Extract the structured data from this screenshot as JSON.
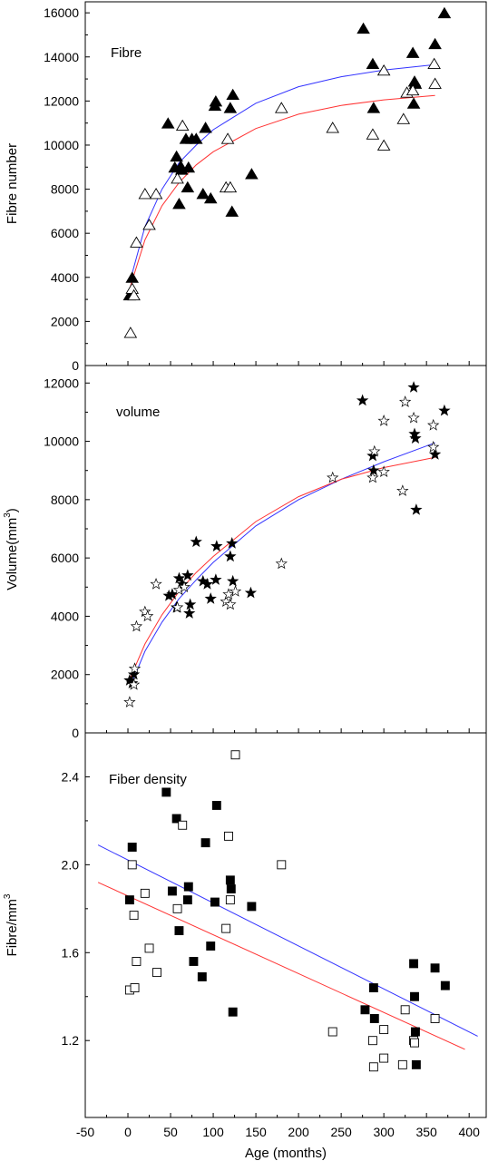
{
  "figure": {
    "xlabel": "Age (months)",
    "xlim": [
      -50,
      420
    ],
    "xticks": [
      -50,
      0,
      50,
      100,
      150,
      200,
      250,
      300,
      350,
      400
    ],
    "colors": {
      "axis": "#000000",
      "blue_fit": "#3333ff",
      "red_fit": "#ff3333"
    }
  },
  "chart_data": [
    {
      "type": "scatter",
      "title": "Fibre",
      "ylabel": "Fibre number",
      "ylabel_sup": "",
      "ylim": [
        0,
        16500
      ],
      "yticks": [
        0,
        2000,
        4000,
        6000,
        8000,
        10000,
        12000,
        14000,
        16000
      ],
      "ytick_labels": [
        "0",
        "2000",
        "4000",
        "6000",
        "8000",
        "10000",
        "12000",
        "14000",
        "16000"
      ],
      "marker": "triangle",
      "series": [
        {
          "marker_fill": "filled",
          "points": [
            [
              2,
              3200
            ],
            [
              5,
              3300
            ],
            [
              5,
              4000
            ],
            [
              47,
              11000
            ],
            [
              55,
              9000
            ],
            [
              57,
              9500
            ],
            [
              60,
              7350
            ],
            [
              62,
              9050
            ],
            [
              63,
              8900
            ],
            [
              68,
              10300
            ],
            [
              70,
              8100
            ],
            [
              71,
              9000
            ],
            [
              75,
              10300
            ],
            [
              80,
              10300
            ],
            [
              88,
              7800
            ],
            [
              91,
              10800
            ],
            [
              97,
              7600
            ],
            [
              102,
              11800
            ],
            [
              103,
              12000
            ],
            [
              120,
              11700
            ],
            [
              122,
              7000
            ],
            [
              123,
              12300
            ],
            [
              145,
              8700
            ],
            [
              276,
              15300
            ],
            [
              287,
              13700
            ],
            [
              288,
              11700
            ],
            [
              334,
              14200
            ],
            [
              335,
              11900
            ],
            [
              336,
              12900
            ],
            [
              337,
              12800
            ],
            [
              360,
              14600
            ],
            [
              371,
              16000
            ]
          ]
        },
        {
          "marker_fill": "open",
          "points": [
            [
              3,
              1500
            ],
            [
              5,
              3500
            ],
            [
              7,
              3200
            ],
            [
              10,
              5600
            ],
            [
              20,
              7800
            ],
            [
              25,
              6400
            ],
            [
              33,
              7800
            ],
            [
              58,
              8500
            ],
            [
              64,
              10900
            ],
            [
              115,
              8100
            ],
            [
              117,
              10300
            ],
            [
              120,
              8100
            ],
            [
              180,
              11700
            ],
            [
              240,
              10800
            ],
            [
              287,
              10500
            ],
            [
              300,
              10000
            ],
            [
              300,
              13400
            ],
            [
              323,
              11200
            ],
            [
              327,
              12400
            ],
            [
              334,
              12500
            ],
            [
              359,
              13700
            ],
            [
              360,
              12800
            ]
          ]
        }
      ],
      "fits": [
        {
          "color": "blue",
          "points": [
            [
              3,
              3900
            ],
            [
              20,
              6300
            ],
            [
              40,
              8000
            ],
            [
              60,
              9200
            ],
            [
              80,
              10000
            ],
            [
              100,
              10700
            ],
            [
              150,
              11900
            ],
            [
              200,
              12650
            ],
            [
              250,
              13100
            ],
            [
              300,
              13400
            ],
            [
              360,
              13650
            ]
          ]
        },
        {
          "color": "red",
          "points": [
            [
              3,
              3600
            ],
            [
              20,
              5700
            ],
            [
              40,
              7250
            ],
            [
              60,
              8300
            ],
            [
              80,
              9100
            ],
            [
              100,
              9700
            ],
            [
              150,
              10750
            ],
            [
              200,
              11400
            ],
            [
              250,
              11800
            ],
            [
              300,
              12050
            ],
            [
              360,
              12250
            ]
          ]
        }
      ]
    },
    {
      "type": "scatter",
      "title": "volume",
      "ylabel": "Volume(mm",
      "ylabel_sup": "3",
      "ylabel_tail": ")",
      "ylim": [
        0,
        12600
      ],
      "yticks": [
        0,
        2000,
        4000,
        6000,
        8000,
        10000,
        12000
      ],
      "ytick_labels": [
        "0",
        "2000",
        "4000",
        "6000",
        "8000",
        "10000",
        "12000"
      ],
      "marker": "star",
      "series": [
        {
          "marker_fill": "filled",
          "points": [
            [
              2,
              1800
            ],
            [
              5,
              1700
            ],
            [
              7,
              2000
            ],
            [
              48,
              4700
            ],
            [
              52,
              4750
            ],
            [
              57,
              4300
            ],
            [
              60,
              5300
            ],
            [
              64,
              5100
            ],
            [
              70,
              5400
            ],
            [
              72,
              4100
            ],
            [
              73,
              4400
            ],
            [
              80,
              6550
            ],
            [
              88,
              5200
            ],
            [
              93,
              5100
            ],
            [
              97,
              4600
            ],
            [
              103,
              5250
            ],
            [
              104,
              6400
            ],
            [
              120,
              6050
            ],
            [
              122,
              6500
            ],
            [
              123,
              5200
            ],
            [
              144,
              4800
            ],
            [
              275,
              11400
            ],
            [
              287,
              9500
            ],
            [
              288,
              9000
            ],
            [
              335,
              11850
            ],
            [
              336,
              10250
            ],
            [
              337,
              10100
            ],
            [
              338,
              7650
            ],
            [
              360,
              9550
            ],
            [
              371,
              11050
            ]
          ]
        },
        {
          "marker_fill": "open",
          "points": [
            [
              2,
              1050
            ],
            [
              7,
              1650
            ],
            [
              8,
              2200
            ],
            [
              10,
              3650
            ],
            [
              20,
              4150
            ],
            [
              23,
              4000
            ],
            [
              33,
              5100
            ],
            [
              58,
              4300
            ],
            [
              60,
              4900
            ],
            [
              66,
              5000
            ],
            [
              115,
              4500
            ],
            [
              118,
              4750
            ],
            [
              120,
              4400
            ],
            [
              126,
              4850
            ],
            [
              180,
              5800
            ],
            [
              240,
              8750
            ],
            [
              287,
              8750
            ],
            [
              289,
              9650
            ],
            [
              300,
              8950
            ],
            [
              300,
              10700
            ],
            [
              322,
              8300
            ],
            [
              325,
              11350
            ],
            [
              335,
              10800
            ],
            [
              358,
              9800
            ],
            [
              358,
              10550
            ]
          ]
        }
      ],
      "fits": [
        {
          "color": "blue",
          "points": [
            [
              3,
              1600
            ],
            [
              20,
              2800
            ],
            [
              40,
              3800
            ],
            [
              60,
              4600
            ],
            [
              80,
              5250
            ],
            [
              100,
              5850
            ],
            [
              150,
              7100
            ],
            [
              200,
              8000
            ],
            [
              250,
              8700
            ],
            [
              300,
              9300
            ],
            [
              360,
              9950
            ]
          ]
        },
        {
          "color": "red",
          "points": [
            [
              3,
              1900
            ],
            [
              20,
              3050
            ],
            [
              40,
              4050
            ],
            [
              60,
              4850
            ],
            [
              80,
              5500
            ],
            [
              100,
              6050
            ],
            [
              150,
              7250
            ],
            [
              200,
              8100
            ],
            [
              250,
              8700
            ],
            [
              300,
              9100
            ],
            [
              360,
              9450
            ]
          ]
        }
      ]
    },
    {
      "type": "scatter",
      "title": "Fiber density",
      "ylabel": "Fibre/mm",
      "ylabel_sup": "3",
      "ylabel_tail": "",
      "ylim": [
        0.85,
        2.6
      ],
      "yticks": [
        1.2,
        1.6,
        2.0,
        2.4
      ],
      "ytick_labels": [
        "1.2",
        "1.6",
        "2.0",
        "2.4"
      ],
      "marker": "square",
      "series": [
        {
          "marker_fill": "filled",
          "points": [
            [
              2,
              1.84
            ],
            [
              5,
              2.08
            ],
            [
              45,
              2.33
            ],
            [
              52,
              1.88
            ],
            [
              57,
              2.21
            ],
            [
              60,
              1.7
            ],
            [
              70,
              1.84
            ],
            [
              71,
              1.9
            ],
            [
              77,
              1.56
            ],
            [
              87,
              1.49
            ],
            [
              91,
              2.1
            ],
            [
              97,
              1.63
            ],
            [
              102,
              1.83
            ],
            [
              104,
              2.27
            ],
            [
              120,
              1.93
            ],
            [
              121,
              1.89
            ],
            [
              123,
              1.33
            ],
            [
              145,
              1.81
            ],
            [
              278,
              1.34
            ],
            [
              288,
              1.44
            ],
            [
              289,
              1.3
            ],
            [
              335,
              1.55
            ],
            [
              336,
              1.4
            ],
            [
              337,
              1.24
            ],
            [
              338,
              1.09
            ],
            [
              360,
              1.53
            ],
            [
              372,
              1.45
            ]
          ]
        },
        {
          "marker_fill": "open",
          "points": [
            [
              2,
              1.43
            ],
            [
              5,
              2.0
            ],
            [
              7,
              1.77
            ],
            [
              8,
              1.44
            ],
            [
              10,
              1.56
            ],
            [
              20,
              1.87
            ],
            [
              25,
              1.62
            ],
            [
              34,
              1.51
            ],
            [
              58,
              1.8
            ],
            [
              64,
              2.18
            ],
            [
              115,
              1.71
            ],
            [
              118,
              2.13
            ],
            [
              120,
              1.84
            ],
            [
              126,
              2.5
            ],
            [
              180,
              2.0
            ],
            [
              240,
              1.24
            ],
            [
              287,
              1.2
            ],
            [
              288,
              1.08
            ],
            [
              300,
              1.12
            ],
            [
              300,
              1.25
            ],
            [
              322,
              1.09
            ],
            [
              325,
              1.34
            ],
            [
              335,
              1.2
            ],
            [
              336,
              1.19
            ],
            [
              360,
              1.3
            ]
          ]
        }
      ],
      "fits": [
        {
          "color": "blue",
          "points": [
            [
              -35,
              2.09
            ],
            [
              410,
              1.22
            ]
          ]
        },
        {
          "color": "red",
          "points": [
            [
              -35,
              1.92
            ],
            [
              395,
              1.16
            ]
          ]
        }
      ]
    }
  ]
}
